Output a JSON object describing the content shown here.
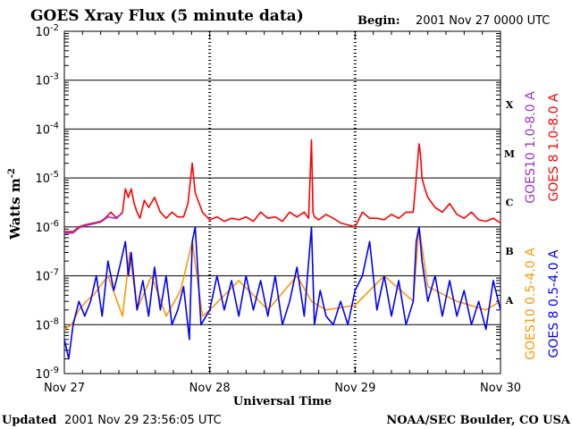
{
  "header": {
    "title": "GOES Xray Flux (5 minute data)",
    "begin_label": "Begin:",
    "begin_value": "2001 Nov 27 0000 UTC"
  },
  "footer": {
    "updated_label": "Updated",
    "updated_value": "2001 Nov 29 23:56:05 UTC",
    "credit": "NOAA/SEC Boulder, CO USA"
  },
  "chart_data": {
    "type": "line",
    "title": "GOES Xray Flux (5 minute data)",
    "xlabel": "Universal Time",
    "ylabel_base": "Watts m",
    "ylabel_exp": "-2",
    "y_scale": "log",
    "ylim": [
      1e-09,
      0.01
    ],
    "xlim": [
      "2001-11-27 00:00",
      "2001-11-30 00:00"
    ],
    "y_ticks": [
      {
        "base": "10",
        "exp": "-2"
      },
      {
        "base": "10",
        "exp": "-3"
      },
      {
        "base": "10",
        "exp": "-4"
      },
      {
        "base": "10",
        "exp": "-5"
      },
      {
        "base": "10",
        "exp": "-6"
      },
      {
        "base": "10",
        "exp": "-7"
      },
      {
        "base": "10",
        "exp": "-8"
      },
      {
        "base": "10",
        "exp": "-9"
      }
    ],
    "x_ticks": [
      "Nov 27",
      "Nov 28",
      "Nov 29",
      "Nov 30"
    ],
    "flare_classes": [
      "X",
      "M",
      "C",
      "B",
      "A"
    ],
    "grid": "horizontal at decades",
    "legend": [
      {
        "name": "GOES10 1.0-8.0 A",
        "color": "#9933cc"
      },
      {
        "name": "GOES 8 1.0-8.0 A",
        "color": "#ff0000"
      },
      {
        "name": "GOES10 0.5-4.0 A",
        "color": "#ff9900"
      },
      {
        "name": "GOES 8 0.5-4.0 A",
        "color": "#0000ff"
      }
    ],
    "series": [
      {
        "name": "GOES 8 1.0-8.0 A",
        "color": "#ff0000",
        "x": [
          0,
          0.06,
          0.1,
          0.14,
          0.2,
          0.25,
          0.28,
          0.32,
          0.36,
          0.4,
          0.42,
          0.44,
          0.46,
          0.48,
          0.5,
          0.52,
          0.55,
          0.58,
          0.62,
          0.66,
          0.7,
          0.74,
          0.78,
          0.82,
          0.85,
          0.88,
          0.9,
          0.95,
          1.0,
          1.05,
          1.1,
          1.15,
          1.2,
          1.25,
          1.3,
          1.35,
          1.4,
          1.45,
          1.5,
          1.55,
          1.6,
          1.65,
          1.68,
          1.7,
          1.71,
          1.72,
          1.75,
          1.8,
          1.85,
          1.9,
          1.95,
          2.0,
          2.05,
          2.1,
          2.15,
          2.2,
          2.25,
          2.3,
          2.35,
          2.4,
          2.42,
          2.44,
          2.45,
          2.46,
          2.48,
          2.5,
          2.55,
          2.6,
          2.65,
          2.7,
          2.75,
          2.8,
          2.85,
          2.9,
          2.95,
          3.0
        ],
        "y": [
          8e-07,
          8e-07,
          1e-06,
          1.1e-06,
          1.2e-06,
          1.3e-06,
          1.5e-06,
          2e-06,
          1.5e-06,
          2e-06,
          6e-06,
          4e-06,
          6e-06,
          3e-06,
          2e-06,
          1.5e-06,
          3.5e-06,
          2.5e-06,
          4e-06,
          2e-06,
          1.5e-06,
          2e-06,
          1.6e-06,
          1.6e-06,
          3e-06,
          2e-05,
          5e-06,
          2e-06,
          1.4e-06,
          1.6e-06,
          1.3e-06,
          1.5e-06,
          1.4e-06,
          1.6e-06,
          1.3e-06,
          2e-06,
          1.5e-06,
          1.6e-06,
          1.3e-06,
          2e-06,
          1.6e-06,
          2e-06,
          1.5e-06,
          6e-05,
          2e-06,
          1.6e-06,
          1.4e-06,
          1.8e-06,
          1.5e-06,
          1.2e-06,
          1.1e-06,
          1e-06,
          2e-06,
          1.5e-06,
          1.5e-06,
          1.4e-06,
          1.8e-06,
          1.5e-06,
          2e-06,
          2e-06,
          1e-05,
          5e-05,
          3e-05,
          1e-05,
          6e-06,
          4e-06,
          2.5e-06,
          2e-06,
          3e-06,
          1.8e-06,
          1.5e-06,
          2e-06,
          1.4e-06,
          1.3e-06,
          1.5e-06,
          1.2e-06
        ]
      },
      {
        "name": "GOES10 1.0-8.0 A",
        "color": "#9933cc",
        "x": [
          0,
          0.06,
          0.1,
          0.14,
          0.2,
          0.25,
          0.3,
          0.35,
          0.4
        ],
        "y": [
          7.5e-07,
          7.5e-07,
          9.5e-07,
          1.05e-06,
          1.15e-06,
          1.25e-06,
          1.6e-06,
          1.5e-06,
          1.9e-06
        ]
      },
      {
        "name": "GOES10 0.5-4.0 A",
        "color": "#ff9900",
        "x": [
          0,
          0.05,
          0.1,
          0.15,
          0.2,
          0.3,
          0.4,
          0.45,
          0.5,
          0.6,
          0.7,
          0.8,
          0.88,
          0.95,
          1.0,
          1.2,
          1.4,
          1.6,
          1.7,
          1.8,
          2.0,
          2.2,
          2.4,
          2.44,
          2.5,
          2.7,
          2.9,
          3.0
        ],
        "y": [
          8e-09,
          1e-08,
          2e-08,
          3e-08,
          4e-08,
          1e-07,
          1.5e-08,
          3e-07,
          2e-08,
          1e-07,
          1.5e-08,
          5e-08,
          5e-07,
          1.5e-08,
          2e-08,
          8e-08,
          2e-08,
          1e-07,
          3e-08,
          2e-08,
          2.5e-08,
          1e-07,
          3e-08,
          1e-06,
          6e-08,
          3e-08,
          2e-08,
          3e-08
        ]
      },
      {
        "name": "GOES 8 0.5-4.0 A",
        "color": "#0000ff",
        "x": [
          0,
          0.03,
          0.06,
          0.1,
          0.14,
          0.18,
          0.22,
          0.26,
          0.3,
          0.34,
          0.38,
          0.42,
          0.44,
          0.46,
          0.5,
          0.54,
          0.58,
          0.62,
          0.66,
          0.7,
          0.74,
          0.78,
          0.82,
          0.86,
          0.88,
          0.9,
          0.94,
          1.0,
          1.05,
          1.1,
          1.15,
          1.2,
          1.25,
          1.3,
          1.35,
          1.4,
          1.45,
          1.5,
          1.55,
          1.6,
          1.65,
          1.7,
          1.72,
          1.76,
          1.8,
          1.85,
          1.9,
          1.95,
          2.0,
          2.05,
          2.1,
          2.15,
          2.2,
          2.25,
          2.3,
          2.35,
          2.4,
          2.42,
          2.44,
          2.46,
          2.5,
          2.55,
          2.6,
          2.65,
          2.7,
          2.75,
          2.8,
          2.85,
          2.9,
          2.95,
          3.0
        ],
        "y": [
          5e-09,
          2e-09,
          1e-08,
          3e-08,
          1.5e-08,
          3e-08,
          1e-07,
          1.5e-08,
          2e-07,
          5e-08,
          1.5e-07,
          5e-07,
          1e-07,
          3e-07,
          2e-08,
          8e-08,
          1.5e-08,
          1.5e-07,
          2e-08,
          1e-07,
          1e-08,
          2e-08,
          6e-08,
          5e-09,
          5e-07,
          1e-06,
          1e-08,
          2e-08,
          1e-07,
          2e-08,
          8e-08,
          1.5e-08,
          1e-07,
          2e-08,
          8e-08,
          1.5e-08,
          1e-07,
          1e-08,
          3e-08,
          1.5e-07,
          1.5e-08,
          1e-06,
          1e-08,
          5e-08,
          1.5e-08,
          1e-08,
          3e-08,
          1e-08,
          5e-08,
          1e-07,
          5e-07,
          2e-08,
          1e-07,
          1.5e-08,
          8e-08,
          1e-08,
          3e-08,
          5e-07,
          1e-06,
          2e-07,
          3e-08,
          1e-07,
          1.5e-08,
          8e-08,
          1.5e-08,
          5e-08,
          1e-08,
          3e-08,
          8e-09,
          8e-08,
          2e-08
        ]
      }
    ]
  }
}
